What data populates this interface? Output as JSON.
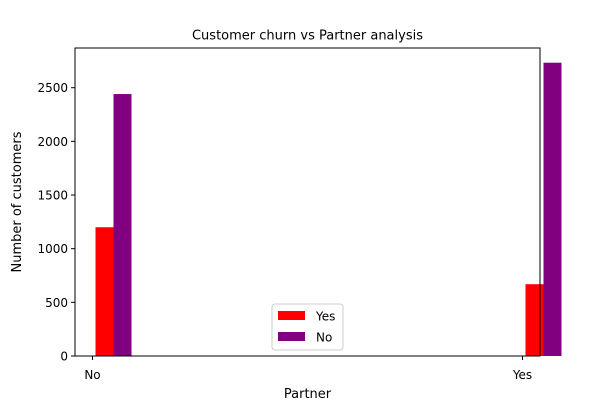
{
  "chart_data": {
    "type": "bar",
    "title": "Customer churn vs Partner analysis",
    "xlabel": "Partner",
    "ylabel": "Number of customers",
    "categories": [
      "No",
      "Yes"
    ],
    "series": [
      {
        "name": "Yes",
        "values": [
          1200,
          669
        ],
        "color": "#ff0000"
      },
      {
        "name": "No",
        "values": [
          2441,
          2733
        ],
        "color": "#800080"
      }
    ],
    "ylim": [
      0,
      2870
    ],
    "y_ticks": [
      0,
      500,
      1000,
      1500,
      2000,
      2500
    ],
    "grid": false,
    "legend_position": "bottom-center"
  }
}
